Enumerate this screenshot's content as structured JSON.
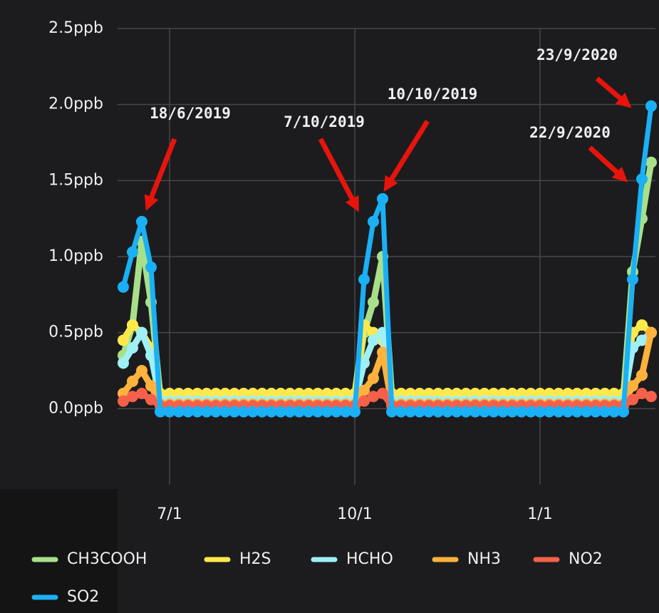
{
  "chart_data": {
    "type": "line",
    "categories": [
      null,
      null,
      null,
      null,
      null,
      "7/1",
      null,
      null,
      null,
      null,
      null,
      null,
      null,
      null,
      null,
      null,
      null,
      null,
      null,
      null,
      null,
      null,
      null,
      null,
      null,
      "10/1",
      null,
      null,
      null,
      null,
      null,
      null,
      null,
      null,
      null,
      null,
      null,
      null,
      null,
      null,
      null,
      null,
      null,
      null,
      null,
      "1/1",
      null,
      null,
      null,
      null,
      null,
      null,
      null,
      null,
      null,
      null,
      null,
      null
    ],
    "series": [
      {
        "name": "CH3COOH",
        "color": "#a8e08a",
        "values": [
          0.35,
          0.55,
          1.1,
          0.7,
          0.08,
          0.08,
          0.08,
          0.08,
          0.08,
          0.08,
          0.08,
          0.08,
          0.08,
          0.08,
          0.08,
          0.08,
          0.08,
          0.08,
          0.08,
          0.08,
          0.08,
          0.08,
          0.08,
          0.08,
          0.08,
          0.08,
          0.5,
          0.7,
          1.0,
          0.08,
          0.08,
          0.08,
          0.08,
          0.08,
          0.08,
          0.08,
          0.08,
          0.08,
          0.08,
          0.08,
          0.08,
          0.08,
          0.08,
          0.08,
          0.08,
          0.08,
          0.08,
          0.08,
          0.08,
          0.08,
          0.08,
          0.08,
          0.08,
          0.08,
          0.08,
          0.9,
          1.25,
          1.62
        ]
      },
      {
        "name": "H2S",
        "color": "#ffe94a",
        "values": [
          0.45,
          0.55,
          0.5,
          0.4,
          0.1,
          0.1,
          0.1,
          0.1,
          0.1,
          0.1,
          0.1,
          0.1,
          0.1,
          0.1,
          0.1,
          0.1,
          0.1,
          0.1,
          0.1,
          0.1,
          0.1,
          0.1,
          0.1,
          0.1,
          0.1,
          0.1,
          0.55,
          0.5,
          0.45,
          0.1,
          0.1,
          0.1,
          0.1,
          0.1,
          0.1,
          0.1,
          0.1,
          0.1,
          0.1,
          0.1,
          0.1,
          0.1,
          0.1,
          0.1,
          0.1,
          0.1,
          0.1,
          0.1,
          0.1,
          0.1,
          0.1,
          0.1,
          0.1,
          0.1,
          0.1,
          0.5,
          0.55,
          0.5
        ]
      },
      {
        "name": "HCHO",
        "color": "#9ef0f5",
        "values": [
          0.3,
          0.4,
          0.5,
          0.35,
          0.05,
          0.05,
          0.05,
          0.05,
          0.05,
          0.05,
          0.05,
          0.05,
          0.05,
          0.05,
          0.05,
          0.05,
          0.05,
          0.05,
          0.05,
          0.05,
          0.05,
          0.05,
          0.05,
          0.05,
          0.05,
          0.05,
          0.3,
          0.45,
          0.5,
          0.05,
          0.05,
          0.05,
          0.05,
          0.05,
          0.05,
          0.05,
          0.05,
          0.05,
          0.05,
          0.05,
          0.05,
          0.05,
          0.05,
          0.05,
          0.05,
          0.05,
          0.05,
          0.05,
          0.05,
          0.05,
          0.05,
          0.05,
          0.05,
          0.05,
          0.05,
          0.4,
          0.45,
          0.5
        ]
      },
      {
        "name": "NH3",
        "color": "#ffb23c",
        "values": [
          0.1,
          0.18,
          0.25,
          0.15,
          0.03,
          0.03,
          0.03,
          0.03,
          0.03,
          0.03,
          0.03,
          0.03,
          0.03,
          0.03,
          0.03,
          0.03,
          0.03,
          0.03,
          0.03,
          0.03,
          0.03,
          0.03,
          0.03,
          0.03,
          0.03,
          0.03,
          0.12,
          0.2,
          0.37,
          0.03,
          0.03,
          0.03,
          0.03,
          0.03,
          0.03,
          0.03,
          0.03,
          0.03,
          0.03,
          0.03,
          0.03,
          0.03,
          0.03,
          0.03,
          0.03,
          0.03,
          0.03,
          0.03,
          0.03,
          0.03,
          0.03,
          0.03,
          0.03,
          0.03,
          0.03,
          0.15,
          0.22,
          0.5
        ]
      },
      {
        "name": "NO2",
        "color": "#f5604a",
        "values": [
          0.05,
          0.08,
          0.1,
          0.06,
          0.02,
          0.02,
          0.02,
          0.02,
          0.02,
          0.02,
          0.02,
          0.02,
          0.02,
          0.02,
          0.02,
          0.02,
          0.02,
          0.02,
          0.02,
          0.02,
          0.02,
          0.02,
          0.02,
          0.02,
          0.02,
          0.02,
          0.05,
          0.08,
          0.1,
          0.02,
          0.02,
          0.02,
          0.02,
          0.02,
          0.02,
          0.02,
          0.02,
          0.02,
          0.02,
          0.02,
          0.02,
          0.02,
          0.02,
          0.02,
          0.02,
          0.02,
          0.02,
          0.02,
          0.02,
          0.02,
          0.02,
          0.02,
          0.02,
          0.02,
          0.02,
          0.06,
          0.1,
          0.08
        ]
      },
      {
        "name": "SO2",
        "color": "#1ab0f5",
        "values": [
          0.8,
          1.03,
          1.23,
          0.93,
          -0.02,
          -0.02,
          -0.02,
          -0.02,
          -0.02,
          -0.02,
          -0.02,
          -0.02,
          -0.02,
          -0.02,
          -0.02,
          -0.02,
          -0.02,
          -0.02,
          -0.02,
          -0.02,
          -0.02,
          -0.02,
          -0.02,
          -0.02,
          -0.02,
          -0.02,
          0.85,
          1.23,
          1.38,
          -0.02,
          -0.02,
          -0.02,
          -0.02,
          -0.02,
          -0.02,
          -0.02,
          -0.02,
          -0.02,
          -0.02,
          -0.02,
          -0.02,
          -0.02,
          -0.02,
          -0.02,
          -0.02,
          -0.02,
          -0.02,
          -0.02,
          -0.02,
          -0.02,
          -0.02,
          -0.02,
          -0.02,
          -0.02,
          -0.02,
          0.85,
          1.51,
          1.99
        ]
      }
    ],
    "ylim": [
      -0.5,
      2.5
    ],
    "yticks": [
      {
        "value": 0,
        "label": "0.0ppb"
      },
      {
        "value": 0.5,
        "label": "0.5ppb"
      },
      {
        "value": 1,
        "label": "1.0ppb"
      },
      {
        "value": 1.5,
        "label": "1.5ppb"
      },
      {
        "value": 2,
        "label": "2.0ppb"
      },
      {
        "value": 2.5,
        "label": "2.5ppb"
      }
    ],
    "grid": true,
    "annotations": [
      "18/6/2019",
      "7/10/2019",
      "10/10/2019",
      "23/9/2020",
      "22/9/2020"
    ]
  }
}
